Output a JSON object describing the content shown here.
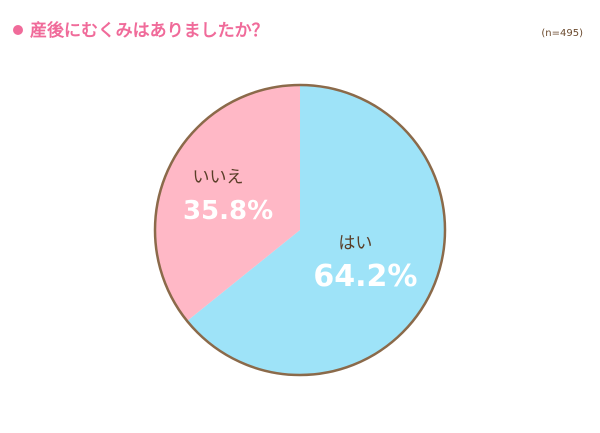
{
  "chart_data": {
    "type": "pie",
    "title": "産後にむくみはありましたか？",
    "note": "(n=495)",
    "categories": [
      "はい",
      "いいえ"
    ],
    "values": [
      64.2,
      35.8
    ],
    "value_labels": [
      "64.2%",
      "35.8%"
    ],
    "colors": [
      "#9ee3f8",
      "#ffb8c6"
    ]
  }
}
